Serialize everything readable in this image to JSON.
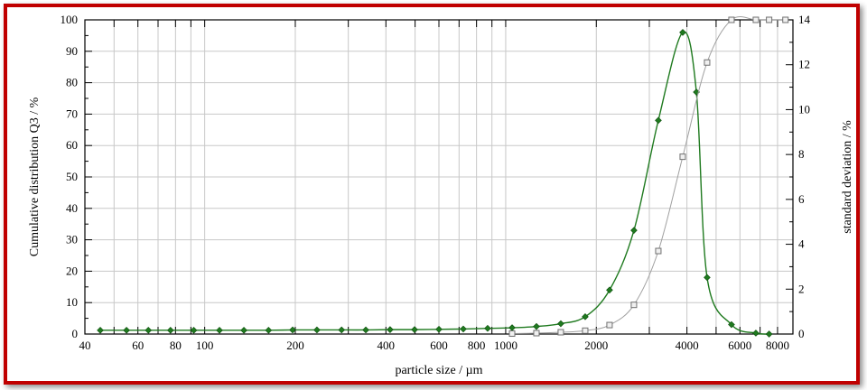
{
  "chart_data": {
    "type": "line",
    "xlabel": "particle size / µm",
    "ylabel_left": "Cumulative distribution Q3 / %",
    "ylabel_right": "standard deviation / %",
    "x_scale": "log",
    "xlim": [
      40,
      9000
    ],
    "ylim_left": [
      0,
      100
    ],
    "ylim_right": [
      0,
      14
    ],
    "x_tick_labels": [
      "40",
      "60",
      "80",
      "100",
      "200",
      "400",
      "600",
      "800",
      "1000",
      "2000",
      "4000",
      "6000",
      "8000"
    ],
    "x_tick_values": [
      40,
      60,
      80,
      100,
      200,
      400,
      600,
      800,
      1000,
      2000,
      4000,
      6000,
      8000
    ],
    "y_left_ticks": [
      0,
      10,
      20,
      30,
      40,
      50,
      60,
      70,
      80,
      90,
      100
    ],
    "y_right_ticks": [
      0,
      2,
      4,
      6,
      8,
      10,
      12,
      14
    ],
    "grid": true,
    "series": [
      {
        "axis": "left",
        "color": "#1f7a1f",
        "marker": "diamond",
        "x": [
          45,
          55,
          65,
          77,
          92,
          112,
          135,
          163,
          196,
          236,
          285,
          343,
          413,
          498,
          600,
          723,
          871,
          1050,
          1265,
          1524,
          1837,
          2213,
          2667,
          3214,
          3873,
          4300,
          4667,
          5624,
          6777,
          7500
        ],
        "y": [
          1.2,
          1.2,
          1.2,
          1.2,
          1.2,
          1.2,
          1.2,
          1.2,
          1.3,
          1.3,
          1.3,
          1.3,
          1.4,
          1.4,
          1.5,
          1.6,
          1.8,
          2.0,
          2.4,
          3.3,
          5.5,
          14,
          33,
          68,
          96,
          77,
          18,
          3,
          0.3,
          0
        ]
      },
      {
        "axis": "right",
        "color": "#a0a0a0",
        "marker": "square",
        "x": [
          1050,
          1265,
          1524,
          1837,
          2213,
          2667,
          3214,
          3873,
          4667,
          5624,
          6777,
          7500,
          8500
        ],
        "y": [
          0.02,
          0.04,
          0.08,
          0.15,
          0.4,
          1.3,
          3.7,
          7.9,
          12.1,
          14,
          14,
          14,
          14
        ]
      }
    ]
  }
}
